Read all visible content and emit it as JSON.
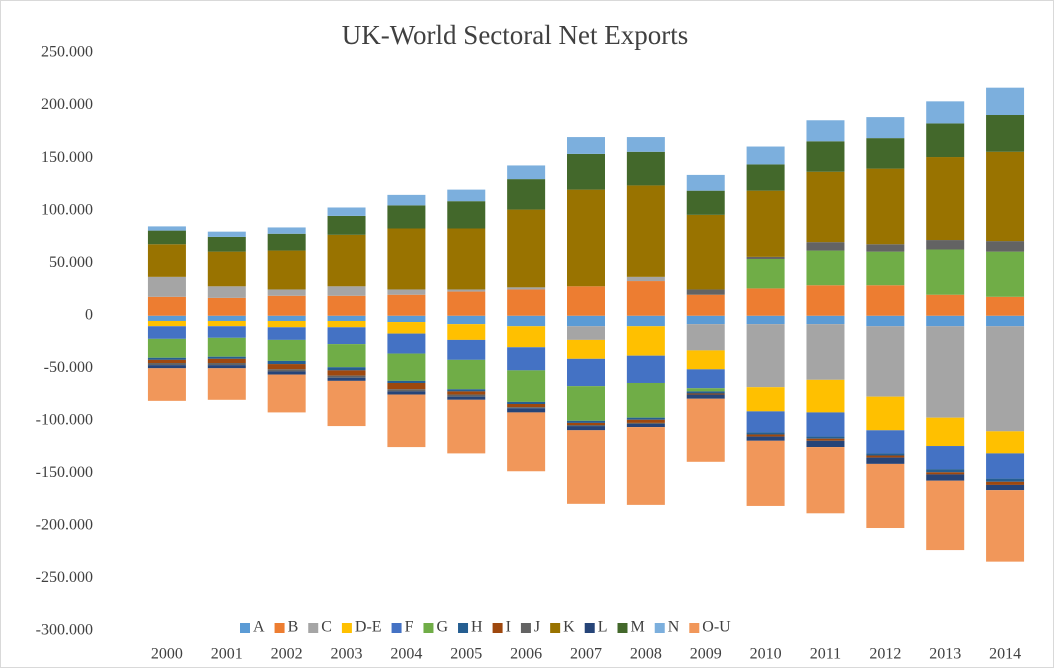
{
  "chart_data": {
    "type": "stacked_bar",
    "title": "UK-World Sectoral Net Exports",
    "categories": [
      "2000",
      "2001",
      "2002",
      "2003",
      "2004",
      "2005",
      "2006",
      "2007",
      "2008",
      "2009",
      "2010",
      "2011",
      "2012",
      "2013",
      "2014"
    ],
    "series": [
      {
        "name": "A",
        "color": "#5b9bd5",
        "values": [
          -5000,
          -5000,
          -5000,
          -5000,
          -6000,
          -8000,
          -10000,
          -10000,
          -10000,
          -8000,
          -8000,
          -8000,
          -10000,
          -10000,
          -10000
        ]
      },
      {
        "name": "B",
        "color": "#ed7d31",
        "values": [
          18000,
          17000,
          19000,
          19000,
          20000,
          23000,
          25000,
          28000,
          33000,
          20000,
          26000,
          29000,
          29000,
          20000,
          18000
        ]
      },
      {
        "name": "C",
        "color": "#a5a5a5",
        "values": [
          19000,
          11000,
          6000,
          9000,
          5000,
          2000,
          2000,
          -13000,
          4000,
          -25000,
          -60000,
          -53000,
          -67000,
          -87000,
          -100000
        ]
      },
      {
        "name": "D-E",
        "color": "#ffc000",
        "values": [
          -5000,
          -5000,
          -6000,
          -6000,
          -11000,
          -15000,
          -20000,
          -18000,
          -28000,
          -18000,
          -23000,
          -31000,
          -32000,
          -27000,
          -21000
        ]
      },
      {
        "name": "F",
        "color": "#4472c4",
        "values": [
          -12000,
          -11000,
          -12000,
          -16000,
          -19000,
          -19000,
          -22000,
          -26000,
          -26000,
          -18000,
          -20000,
          -23000,
          -22000,
          -22000,
          -24000
        ]
      },
      {
        "name": "G",
        "color": "#70ad47",
        "values": [
          -18000,
          -18000,
          -20000,
          -22000,
          -26000,
          -28000,
          -30000,
          -33000,
          -33000,
          -3000,
          28000,
          33000,
          32000,
          43000,
          43000
        ]
      },
      {
        "name": "H",
        "color": "#255e91",
        "values": [
          -2000,
          -2000,
          -3000,
          -3000,
          -2000,
          -2000,
          -2000,
          -2000,
          -2000,
          -2000,
          -2000,
          -2000,
          -2000,
          -3000,
          -3000
        ]
      },
      {
        "name": "I",
        "color": "#9e480e",
        "values": [
          -3000,
          -4000,
          -5000,
          -5000,
          -6000,
          -3000,
          -3000,
          -2000,
          -3000,
          -1000,
          -2000,
          -2000,
          -2000,
          -2000,
          -3000
        ]
      },
      {
        "name": "J",
        "color": "#636363",
        "values": [
          -2000,
          -2000,
          -2000,
          -2000,
          -2000,
          -2000,
          -1000,
          -1000,
          -1000,
          5000,
          2000,
          8000,
          7000,
          9000,
          10000
        ]
      },
      {
        "name": "K",
        "color": "#997300",
        "values": [
          31000,
          33000,
          37000,
          49000,
          58000,
          58000,
          74000,
          92000,
          87000,
          71000,
          63000,
          67000,
          72000,
          79000,
          85000
        ]
      },
      {
        "name": "L",
        "color": "#264478",
        "values": [
          -3000,
          -3000,
          -3000,
          -3000,
          -3000,
          -3000,
          -4000,
          -4000,
          -3000,
          -4000,
          -4000,
          -6000,
          -6000,
          -6000,
          -5000
        ]
      },
      {
        "name": "M",
        "color": "#43682b",
        "values": [
          13000,
          14000,
          16000,
          18000,
          22000,
          26000,
          29000,
          34000,
          32000,
          23000,
          25000,
          29000,
          29000,
          32000,
          35000
        ]
      },
      {
        "name": "N",
        "color": "#7cafdd",
        "values": [
          4000,
          5000,
          6000,
          8000,
          10000,
          11000,
          13000,
          16000,
          14000,
          15000,
          17000,
          20000,
          20000,
          21000,
          26000
        ]
      },
      {
        "name": "O-U",
        "color": "#f1975a",
        "values": [
          -31000,
          -30000,
          -36000,
          -43000,
          -50000,
          -51000,
          -56000,
          -70000,
          -74000,
          -60000,
          -62000,
          -63000,
          -61000,
          -66000,
          -68000
        ]
      }
    ],
    "ylim": [
      -300000,
      250000
    ],
    "yticks": [
      {
        "value": -300000,
        "label": "-300.000"
      },
      {
        "value": -250000,
        "label": "-250.000"
      },
      {
        "value": -200000,
        "label": "-200.000"
      },
      {
        "value": -150000,
        "label": "-150.000"
      },
      {
        "value": -100000,
        "label": "-100.000"
      },
      {
        "value": -50000,
        "label": "-50.000"
      },
      0,
      {
        "value": 50000,
        "label": "50.000"
      },
      {
        "value": 100000,
        "label": "100.000"
      },
      {
        "value": 150000,
        "label": "150.000"
      },
      {
        "value": 200000,
        "label": "200.000"
      },
      {
        "value": 250000,
        "label": "250.000"
      }
    ],
    "grid": false,
    "legend": "bottom"
  }
}
